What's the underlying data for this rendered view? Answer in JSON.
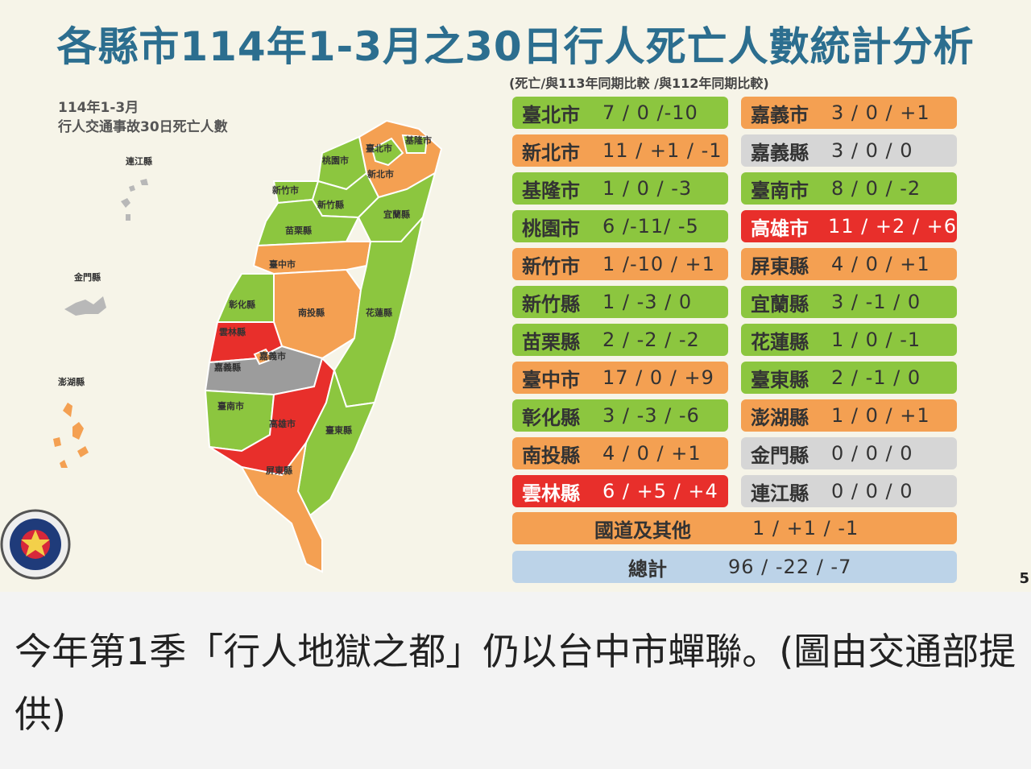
{
  "title": "各縣市114年1-3月之30日行人死亡人數統計分析",
  "subtitle": "(死亡/與113年同期比較 /與112年同期比較)",
  "map_label": {
    "line1": "114年1-3月",
    "line2": "行人交通事故30日死亡人數"
  },
  "map_regions": {
    "lienchiang": "連江縣",
    "kinmen": "金門縣",
    "penghu": "澎湖縣",
    "keelung": "基隆市",
    "taipei": "臺北市",
    "newtaipei": "新北市",
    "taoyuan": "桃園市",
    "hsinchu_city": "新竹市",
    "hsinchu_county": "新竹縣",
    "yilan": "宜蘭縣",
    "miaoli": "苗栗縣",
    "taichung": "臺中市",
    "changhua": "彰化縣",
    "nantou": "南投縣",
    "hualien": "花蓮縣",
    "yunlin": "雲林縣",
    "chiayi_city": "嘉義市",
    "chiayi_county": "嘉義縣",
    "tainan": "臺南市",
    "kaohsiung": "高雄市",
    "taitung": "臺東縣",
    "pingtung": "屏東縣"
  },
  "colors": {
    "green": "#8cc63f",
    "orange": "#f4a052",
    "red": "#e82f2b",
    "gray": "#d6d6d6",
    "blue": "#bcd3e8"
  },
  "table_left": [
    {
      "name": "臺北市",
      "value": "7 / 0 /-10",
      "level": "green"
    },
    {
      "name": "新北市",
      "value": "11 / +1 / -1",
      "level": "orange"
    },
    {
      "name": "基隆市",
      "value": "1 / 0 / -3",
      "level": "green"
    },
    {
      "name": "桃園市",
      "value": "6 /-11/ -5",
      "level": "green"
    },
    {
      "name": "新竹市",
      "value": "1 /-10 / +1",
      "level": "orange"
    },
    {
      "name": "新竹縣",
      "value": "1 / -3 / 0",
      "level": "green"
    },
    {
      "name": "苗栗縣",
      "value": "2 / -2 / -2",
      "level": "green"
    },
    {
      "name": "臺中市",
      "value": "17 / 0 / +9",
      "level": "orange"
    },
    {
      "name": "彰化縣",
      "value": "3 / -3 / -6",
      "level": "green"
    },
    {
      "name": "南投縣",
      "value": "4 / 0 / +1",
      "level": "orange"
    },
    {
      "name": "雲林縣",
      "value": "6 / +5 / +4",
      "level": "red"
    }
  ],
  "table_right": [
    {
      "name": "嘉義市",
      "value": "3 / 0 / +1",
      "level": "orange"
    },
    {
      "name": "嘉義縣",
      "value": "3 / 0 / 0",
      "level": "gray"
    },
    {
      "name": "臺南市",
      "value": "8 / 0 / -2",
      "level": "green"
    },
    {
      "name": "高雄市",
      "value": "11 / +2 / +6",
      "level": "red"
    },
    {
      "name": "屏東縣",
      "value": "4 / 0 / +1",
      "level": "orange"
    },
    {
      "name": "宜蘭縣",
      "value": "3 / -1 / 0",
      "level": "green"
    },
    {
      "name": "花蓮縣",
      "value": "1 / 0 / -1",
      "level": "green"
    },
    {
      "name": "臺東縣",
      "value": "2 / -1 / 0",
      "level": "green"
    },
    {
      "name": "澎湖縣",
      "value": "1 / 0 / +1",
      "level": "orange"
    },
    {
      "name": "金門縣",
      "value": "0 / 0 / 0",
      "level": "gray"
    },
    {
      "name": "連江縣",
      "value": "0 / 0 / 0",
      "level": "gray"
    }
  ],
  "highway": {
    "name": "國道及其他",
    "value": "1 / +1 / -1"
  },
  "total": {
    "name": "總計",
    "value": "96 / -22 / -7"
  },
  "page_number": "5",
  "caption": "今年第1季「行人地獄之都」仍以台中市蟬聯。(圖由交通部提供)"
}
